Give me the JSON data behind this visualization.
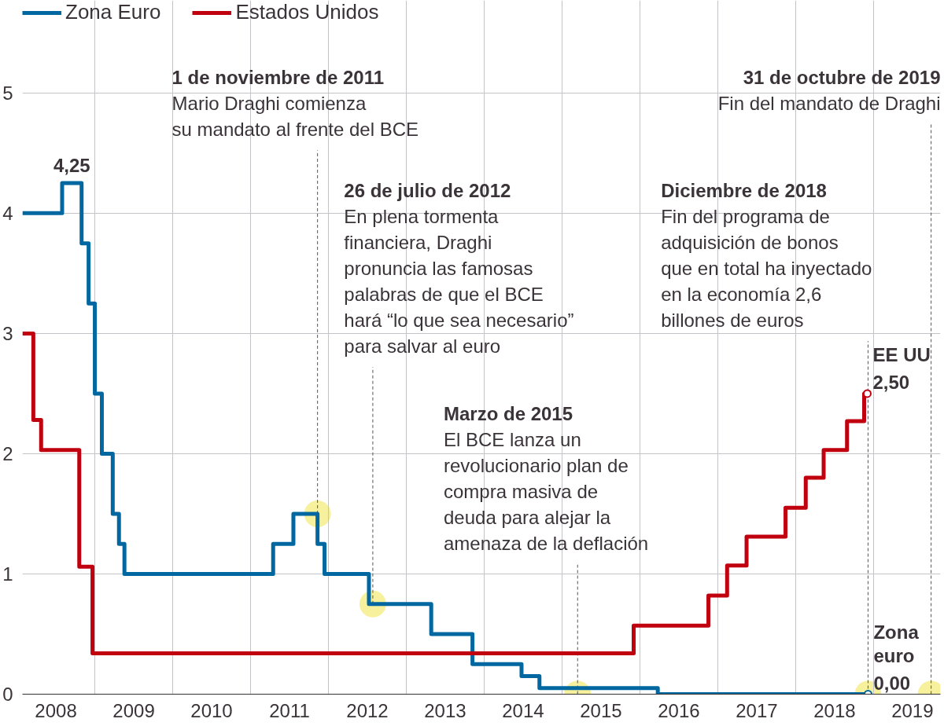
{
  "chart_data": {
    "type": "step",
    "xlim": [
      2008.07,
      2019.86
    ],
    "ylim": [
      0,
      5.77
    ],
    "yticks": [
      0,
      1,
      2,
      3,
      4,
      5
    ],
    "xticks": [
      {
        "value": 2008.5,
        "label": "2008"
      },
      {
        "value": 2009,
        "label": null
      },
      {
        "value": 2009.5,
        "label": "2009"
      },
      {
        "value": 2010,
        "label": null
      },
      {
        "value": 2010.5,
        "label": "2010"
      },
      {
        "value": 2011,
        "label": null
      },
      {
        "value": 2011.5,
        "label": "2011"
      },
      {
        "value": 2012,
        "label": null
      },
      {
        "value": 2012.5,
        "label": "2012"
      },
      {
        "value": 2013,
        "label": null
      },
      {
        "value": 2013.5,
        "label": "2013"
      },
      {
        "value": 2014,
        "label": null
      },
      {
        "value": 2014.5,
        "label": "2014"
      },
      {
        "value": 2015,
        "label": null
      },
      {
        "value": 2015.5,
        "label": "2015"
      },
      {
        "value": 2016,
        "label": null
      },
      {
        "value": 2016.5,
        "label": "2016"
      },
      {
        "value": 2017,
        "label": null
      },
      {
        "value": 2017.5,
        "label": "2017"
      },
      {
        "value": 2018,
        "label": null
      },
      {
        "value": 2018.5,
        "label": "2018"
      },
      {
        "value": 2019,
        "label": null
      },
      {
        "value": 2019.5,
        "label": "2019"
      }
    ],
    "grid": true,
    "legend": "top left",
    "series": [
      {
        "name": "Zona Euro",
        "color": "#0067a0",
        "x": [
          2008.07,
          2008.58,
          2008.83,
          2008.92,
          2009.0,
          2009.09,
          2009.23,
          2009.31,
          2009.38,
          2011.29,
          2011.55,
          2011.86,
          2011.95,
          2012.52,
          2013.32,
          2013.85,
          2014.48,
          2014.71,
          2016.23,
          2018.93
        ],
        "values": [
          4,
          4.25,
          3.75,
          3.25,
          2.5,
          2,
          1.5,
          1.25,
          1,
          1.25,
          1.5,
          1.25,
          1,
          0.75,
          0.5,
          0.25,
          0.15,
          0.05,
          0,
          0
        ],
        "value_labels": [
          null,
          "4,25",
          null,
          null,
          null,
          null,
          null,
          null,
          null,
          null,
          null,
          null,
          null,
          null,
          null,
          null,
          null,
          null,
          null,
          "Zona\neuro\n0,00"
        ]
      },
      {
        "name": "Estados Unidos",
        "color": "#c0000f",
        "x": [
          2008.07,
          2008.21,
          2008.31,
          2008.8,
          2008.97,
          2015.92,
          2016.88,
          2017.12,
          2017.37,
          2017.87,
          2018.13,
          2018.36,
          2018.66,
          2018.88,
          2018.92
        ],
        "values": [
          3,
          2.28,
          2.03,
          1.06,
          0.34,
          0.57,
          0.82,
          1.07,
          1.31,
          1.55,
          1.8,
          2.03,
          2.27,
          2.5,
          2.5
        ],
        "value_labels": [
          null,
          null,
          null,
          null,
          null,
          null,
          null,
          null,
          null,
          null,
          null,
          null,
          null,
          null,
          "EE UU\n2,50"
        ]
      }
    ],
    "annotations": [
      {
        "text": "1 de noviembre de 2011\nMario Draghi comienza\nsu mandato al frente del BCE",
        "x": 2011.86,
        "y": 1.5
      },
      {
        "text": "26 de julio de 2012\nEn plena tormenta\nfinanciera, Draghi\npronuncia las famosas\npalabras de que el BCE\nhará “lo que sea necesario”\npara salvar al euro",
        "x": 2012.57,
        "y": 0.75
      },
      {
        "text": "Marzo de 2015\nEl BCE lanza un\nrevolucionario plan de\ncompra masiva de\ndeuda para alejar la\namenaza de la deflación",
        "x": 2015.2,
        "y": 0
      },
      {
        "text": "Diciembre de 2018\nFin del programa de\nadquisición de bonos\nque en total ha inyectado\nen la economía 2,6\nbillones de euros",
        "x": 2018.93,
        "y": 0
      },
      {
        "text": "31 de octubre de 2019\nFin del mandato de Draghi",
        "x": 2019.74,
        "y": 0
      }
    ]
  }
}
